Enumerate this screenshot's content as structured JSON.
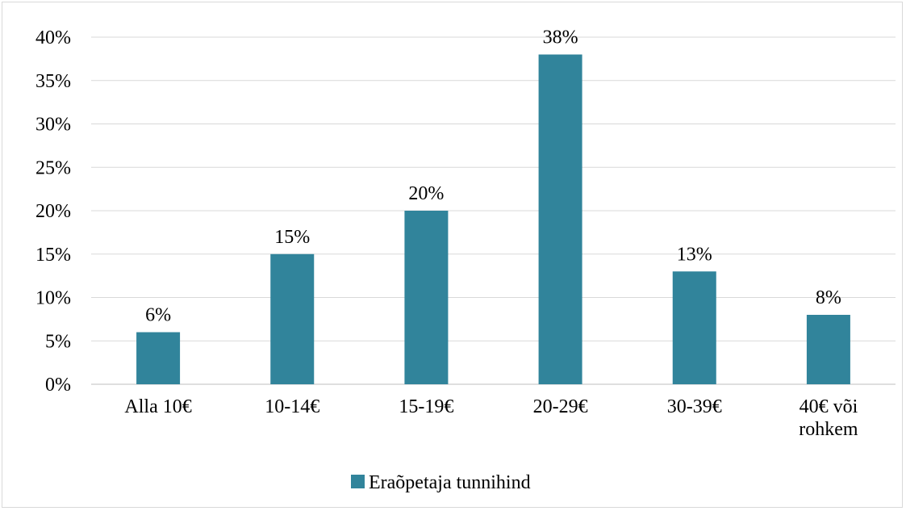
{
  "chart_data": {
    "type": "bar",
    "categories": [
      [
        "Alla 10€"
      ],
      [
        "10-14€"
      ],
      [
        "15-19€"
      ],
      [
        "20-29€"
      ],
      [
        "30-39€"
      ],
      [
        "40€ või",
        "rohkem"
      ]
    ],
    "series": [
      {
        "name": "Eraõpetaja tunnihind",
        "values": [
          6,
          15,
          20,
          38,
          13,
          8
        ],
        "data_labels": [
          "6%",
          "15%",
          "20%",
          "38%",
          "13%",
          "8%"
        ],
        "color": "#31849b"
      }
    ],
    "y_ticks": [
      "0%",
      "5%",
      "10%",
      "15%",
      "20%",
      "25%",
      "30%",
      "35%",
      "40%"
    ],
    "ylim": [
      0,
      40
    ],
    "grid": true,
    "legend_position": "bottom",
    "gridline_color": "#d9d9d9",
    "axis_color": "#bfbfbf"
  }
}
